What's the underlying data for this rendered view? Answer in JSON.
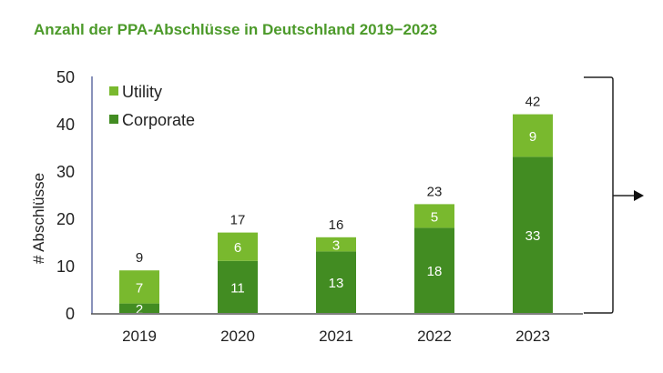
{
  "chart_data": {
    "type": "bar",
    "stacked": true,
    "title": "Anzahl der PPA-Abschlüsse in Deutschland 2019−2023",
    "xlabel": "",
    "ylabel": "# Abschlüsse",
    "ylim": [
      0,
      50
    ],
    "yticks": [
      0,
      10,
      20,
      30,
      40,
      50
    ],
    "grid": false,
    "legend": "top-left",
    "categories": [
      "2019",
      "2020",
      "2021",
      "2022",
      "2023"
    ],
    "series": [
      {
        "name": "Corporate",
        "color": "#428c22",
        "values": [
          2,
          11,
          13,
          18,
          33
        ]
      },
      {
        "name": "Utility",
        "color": "#79b92e",
        "values": [
          7,
          6,
          3,
          5,
          9
        ]
      }
    ],
    "totals": [
      9,
      17,
      16,
      23,
      42
    ],
    "annotations": {
      "bracket_arrow": "right"
    }
  }
}
